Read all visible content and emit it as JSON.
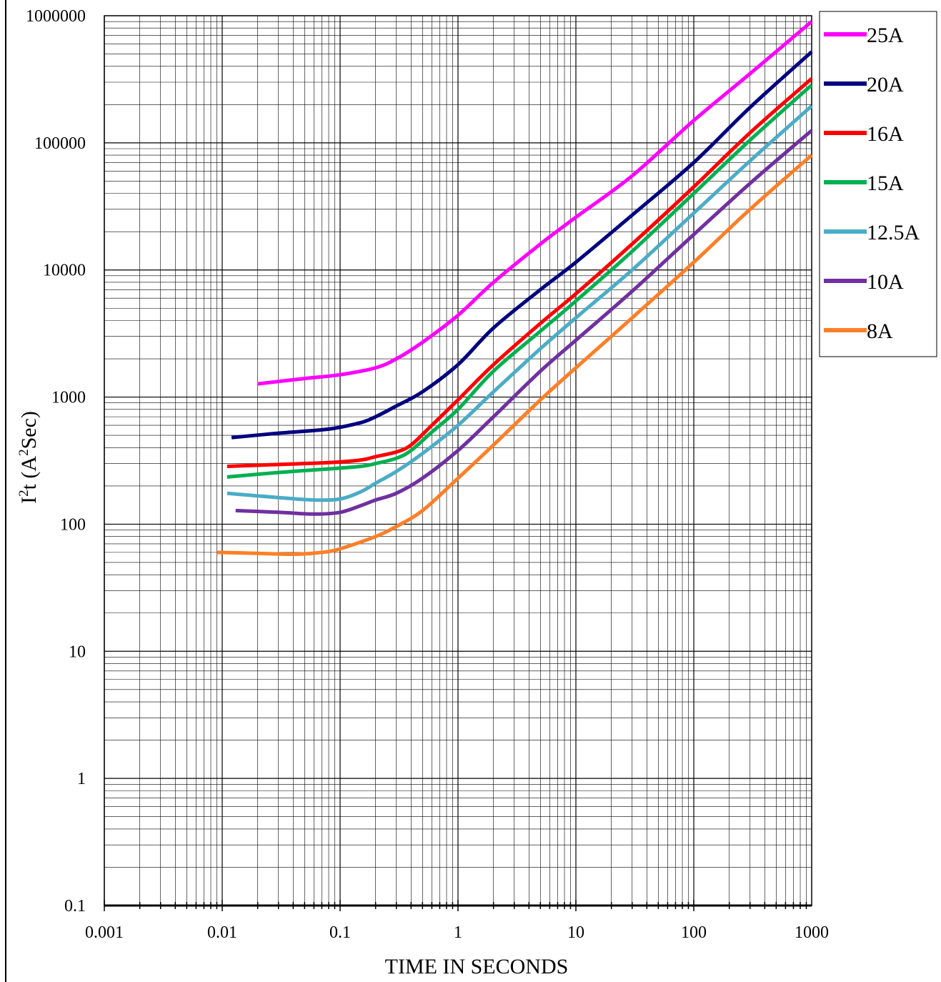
{
  "chart_data": {
    "type": "line",
    "title": "",
    "xlabel": "TIME IN SECONDS",
    "ylabel": {
      "base": "I",
      "sup1": "2",
      "mid": "t (A",
      "sup2": "2",
      "end": "Sec)"
    },
    "x_scale": "log",
    "y_scale": "log",
    "xlim": [
      0.001,
      1000
    ],
    "ylim": [
      0.1,
      1000000
    ],
    "x_ticks": [
      "0.001",
      "0.01",
      "0.1",
      "1",
      "10",
      "100",
      "1000"
    ],
    "y_ticks": [
      "0.1",
      "1",
      "10",
      "100",
      "1000",
      "10000",
      "100000",
      "1000000"
    ],
    "grid": true,
    "legend_position": "right",
    "series": [
      {
        "name": "25A",
        "color": "#ff00ff",
        "points": [
          [
            0.02,
            1270
          ],
          [
            0.05,
            1400
          ],
          [
            0.1,
            1500
          ],
          [
            0.2,
            1700
          ],
          [
            0.3,
            2000
          ],
          [
            0.5,
            2700
          ],
          [
            1,
            4400
          ],
          [
            2,
            8000
          ],
          [
            5,
            16000
          ],
          [
            10,
            26000
          ],
          [
            30,
            55000
          ],
          [
            100,
            150000
          ],
          [
            300,
            350000
          ],
          [
            1000,
            900000
          ]
        ]
      },
      {
        "name": "20A",
        "color": "#000080",
        "points": [
          [
            0.012,
            480
          ],
          [
            0.03,
            520
          ],
          [
            0.08,
            560
          ],
          [
            0.15,
            630
          ],
          [
            0.2,
            700
          ],
          [
            0.3,
            850
          ],
          [
            0.5,
            1100
          ],
          [
            1,
            1800
          ],
          [
            2,
            3500
          ],
          [
            5,
            7000
          ],
          [
            10,
            11500
          ],
          [
            30,
            27000
          ],
          [
            100,
            70000
          ],
          [
            300,
            190000
          ],
          [
            1000,
            520000
          ]
        ]
      },
      {
        "name": "16A",
        "color": "#ff0000",
        "points": [
          [
            0.011,
            285
          ],
          [
            0.03,
            295
          ],
          [
            0.08,
            305
          ],
          [
            0.15,
            320
          ],
          [
            0.2,
            340
          ],
          [
            0.3,
            370
          ],
          [
            0.4,
            420
          ],
          [
            0.6,
            600
          ],
          [
            1,
            950
          ],
          [
            2,
            1800
          ],
          [
            5,
            3800
          ],
          [
            10,
            6500
          ],
          [
            30,
            16000
          ],
          [
            100,
            45000
          ],
          [
            300,
            120000
          ],
          [
            1000,
            320000
          ]
        ]
      },
      {
        "name": "15A",
        "color": "#00b050",
        "points": [
          [
            0.011,
            235
          ],
          [
            0.03,
            255
          ],
          [
            0.08,
            272
          ],
          [
            0.15,
            285
          ],
          [
            0.2,
            300
          ],
          [
            0.3,
            330
          ],
          [
            0.4,
            380
          ],
          [
            0.6,
            530
          ],
          [
            1,
            800
          ],
          [
            2,
            1600
          ],
          [
            5,
            3300
          ],
          [
            10,
            5700
          ],
          [
            30,
            14000
          ],
          [
            100,
            40000
          ],
          [
            300,
            105000
          ],
          [
            1000,
            285000
          ]
        ]
      },
      {
        "name": "12.5A",
        "color": "#4bacc6",
        "points": [
          [
            0.011,
            175
          ],
          [
            0.03,
            162
          ],
          [
            0.06,
            155
          ],
          [
            0.1,
            158
          ],
          [
            0.15,
            180
          ],
          [
            0.2,
            210
          ],
          [
            0.3,
            260
          ],
          [
            0.5,
            360
          ],
          [
            1,
            600
          ],
          [
            2,
            1100
          ],
          [
            5,
            2400
          ],
          [
            10,
            4200
          ],
          [
            30,
            10000
          ],
          [
            100,
            28000
          ],
          [
            300,
            72000
          ],
          [
            1000,
            195000
          ]
        ]
      },
      {
        "name": "10A",
        "color": "#7030a0",
        "points": [
          [
            0.013,
            128
          ],
          [
            0.03,
            124
          ],
          [
            0.06,
            120
          ],
          [
            0.1,
            124
          ],
          [
            0.15,
            140
          ],
          [
            0.2,
            155
          ],
          [
            0.3,
            175
          ],
          [
            0.5,
            230
          ],
          [
            1,
            380
          ],
          [
            2,
            700
          ],
          [
            5,
            1600
          ],
          [
            10,
            2800
          ],
          [
            30,
            6800
          ],
          [
            100,
            19000
          ],
          [
            300,
            48000
          ],
          [
            1000,
            125000
          ]
        ]
      },
      {
        "name": "8A",
        "color": "#ff7f27",
        "points": [
          [
            0.009,
            60
          ],
          [
            0.02,
            59
          ],
          [
            0.04,
            58
          ],
          [
            0.07,
            60
          ],
          [
            0.1,
            64
          ],
          [
            0.2,
            80
          ],
          [
            0.3,
            96
          ],
          [
            0.5,
            128
          ],
          [
            1,
            230
          ],
          [
            2,
            420
          ],
          [
            5,
            950
          ],
          [
            10,
            1700
          ],
          [
            30,
            4200
          ],
          [
            100,
            11500
          ],
          [
            300,
            30000
          ],
          [
            1000,
            80000
          ]
        ]
      }
    ]
  }
}
